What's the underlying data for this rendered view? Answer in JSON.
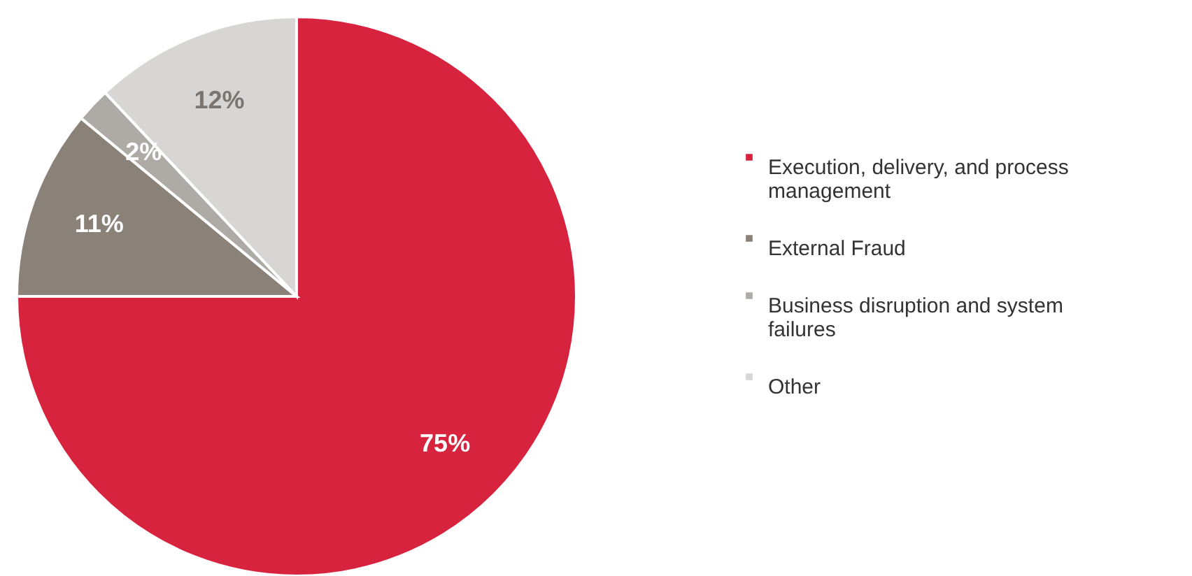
{
  "chart_data": {
    "type": "pie",
    "categories": [
      "Execution, delivery, and process management",
      "External Fraud",
      "Business disruption and system failures",
      "Other"
    ],
    "values": [
      75,
      11,
      2,
      12
    ],
    "value_labels": [
      "75%",
      "11%",
      "2%",
      "12%"
    ],
    "colors": [
      "#d8233f",
      "#8a8179",
      "#aeaaa6",
      "#d8d6d4"
    ],
    "legend": "right"
  }
}
